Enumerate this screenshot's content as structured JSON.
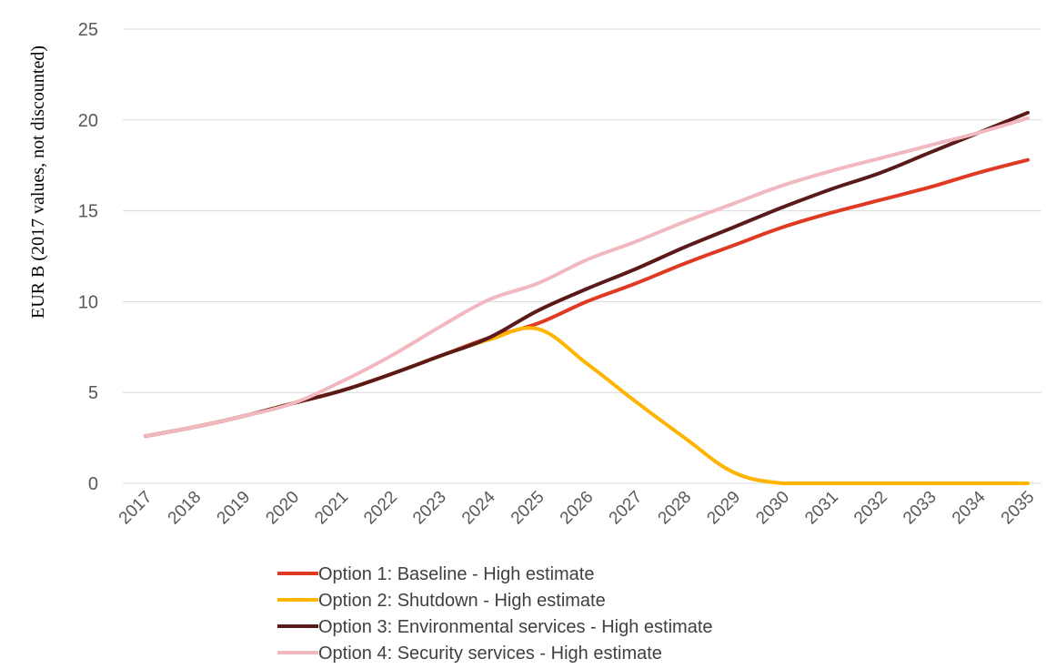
{
  "chart_data": {
    "type": "line",
    "title": "",
    "xlabel": "",
    "ylabel": "EUR B (2017 values, not discounted)",
    "ylim": [
      0,
      25
    ],
    "yticks": [
      0,
      5,
      10,
      15,
      20,
      25
    ],
    "grid": "horizontal",
    "legend_position": "bottom",
    "categories": [
      "2017",
      "2018",
      "2019",
      "2020",
      "2021",
      "2022",
      "2023",
      "2024",
      "2025",
      "2026",
      "2027",
      "2028",
      "2029",
      "2030",
      "2031",
      "2032",
      "2033",
      "2034",
      "2035"
    ],
    "series": [
      {
        "name": "Option 1: Baseline - High estimate",
        "color": "#e03a24",
        "values": [
          2.6,
          3.1,
          3.7,
          4.4,
          5.1,
          6.0,
          7.0,
          8.0,
          8.8,
          10.0,
          11.0,
          12.1,
          13.1,
          14.1,
          14.9,
          15.6,
          16.3,
          17.1,
          17.8
        ]
      },
      {
        "name": "Option 2: Shutdown - High estimate",
        "color": "#ffb400",
        "values": [
          2.6,
          3.1,
          3.7,
          4.4,
          5.1,
          6.0,
          7.0,
          7.9,
          8.5,
          6.6,
          4.5,
          2.5,
          0.6,
          0.0,
          0.0,
          0.0,
          0.0,
          0.0,
          0.0
        ]
      },
      {
        "name": "Option 3: Environmental services - High estimate",
        "color": "#5a1a1a",
        "values": [
          2.6,
          3.1,
          3.7,
          4.4,
          5.1,
          6.0,
          7.0,
          8.0,
          9.5,
          10.7,
          11.8,
          13.0,
          14.1,
          15.2,
          16.2,
          17.1,
          18.2,
          19.3,
          20.4
        ]
      },
      {
        "name": "Option 4: Security services - High estimate",
        "color": "#f2b8c0",
        "values": [
          2.6,
          3.1,
          3.7,
          4.4,
          5.6,
          7.0,
          8.6,
          10.1,
          11.0,
          12.3,
          13.3,
          14.4,
          15.4,
          16.4,
          17.2,
          17.9,
          18.6,
          19.3,
          20.1
        ]
      }
    ]
  }
}
